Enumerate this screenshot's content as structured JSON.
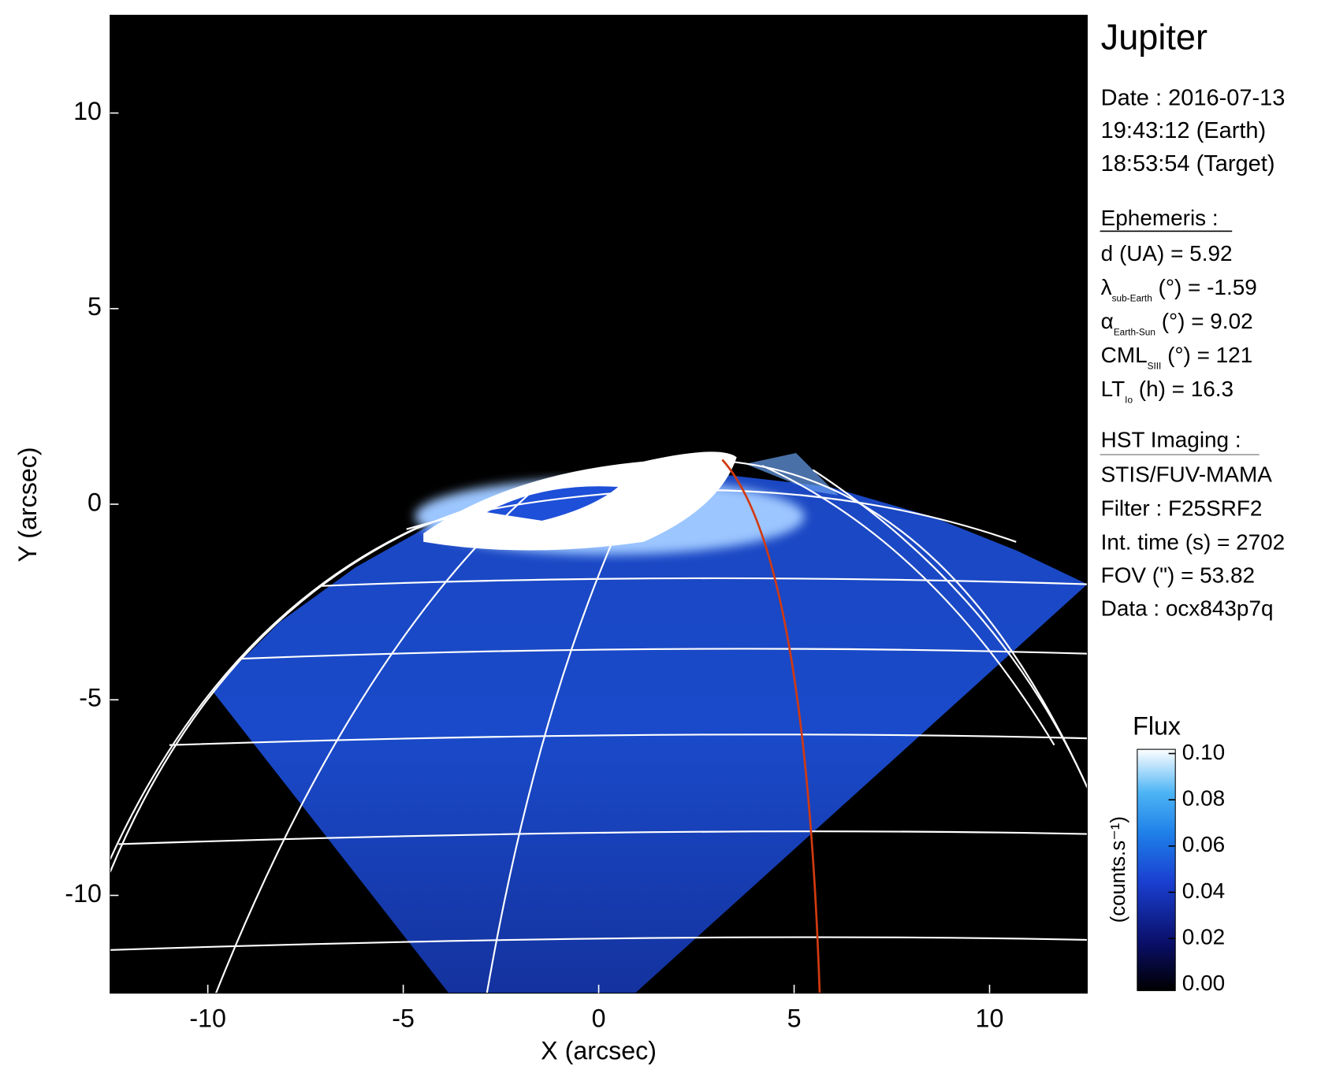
{
  "chart_data": {
    "type": "image",
    "x_label": "X (arcsec)",
    "y_label": "Y (arcsec)",
    "xlim": [
      -12.5,
      12.5
    ],
    "ylim": [
      -12.5,
      12.5
    ],
    "xticks": [
      -10,
      -5,
      0,
      5,
      10
    ],
    "yticks": [
      -10,
      -5,
      0,
      5,
      10
    ],
    "colorbar": {
      "title": "Flux",
      "label": "(counts.s⁻¹)",
      "lim": [
        0,
        0.1
      ],
      "ticks": [
        {
          "value": 0,
          "label": "0.00"
        },
        {
          "value": 0.02,
          "label": "0.02"
        },
        {
          "value": 0.04,
          "label": "0.04"
        },
        {
          "value": 0.06,
          "label": "0.06"
        },
        {
          "value": 0.08,
          "label": "0.08"
        },
        {
          "value": 0.1,
          "label": "0.10"
        }
      ]
    }
  },
  "info": {
    "target": "Jupiter",
    "date": [
      "Date : 2016-07-13",
      "19:43:12 (Earth)",
      "18:53:54 (Target)"
    ],
    "ephemeris": {
      "heading": "Ephemeris :",
      "items": [
        {
          "name": "d (UA)",
          "rest": "    =",
          "value": 5.92
        },
        {
          "name": "λ",
          "sub": "sub-Earth",
          "rest": " (°) =",
          "value": -1.59
        },
        {
          "name": "α",
          "sub": "Earth-Sun",
          "rest": " (°) =",
          "value": 9.02
        },
        {
          "name": "CML",
          "sub": "SIII",
          "rest": " (°) =",
          "value": 121
        },
        {
          "name": "LT",
          "sub": "Io",
          "rest": " (h) =",
          "value": 16.3
        }
      ]
    },
    "hst": {
      "heading": "HST Imaging :",
      "lines": [
        "STIS/FUV-MAMA",
        "Filter : F25SRF2"
      ],
      "items": [
        {
          "name": "Int. time (s) =",
          "value": 2702
        },
        {
          "name": "FOV (\") =",
          "value": 53.82
        }
      ],
      "data": "Data : ocx843p7q"
    }
  }
}
